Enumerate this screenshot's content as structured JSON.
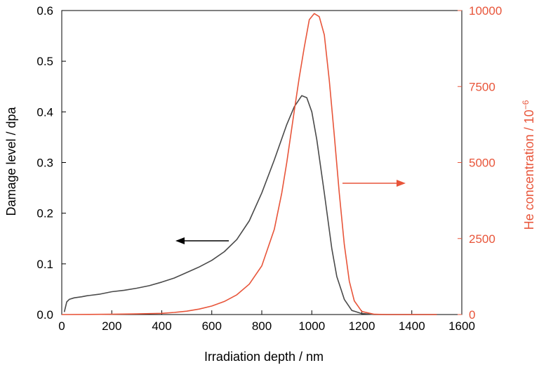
{
  "chart_data": {
    "type": "line",
    "title": "",
    "xlabel": "Irradiation depth / nm",
    "ylabel_left": "Damage level / dpa",
    "ylabel_right": "He concentration / 10",
    "ylabel_right_superscript": "−6",
    "xlim": [
      0,
      1600
    ],
    "ylim_left": [
      0,
      0.6
    ],
    "ylim_right": [
      0,
      10000
    ],
    "x_ticks": [
      "0",
      "200",
      "400",
      "600",
      "800",
      "1000",
      "1200",
      "1400",
      "1600"
    ],
    "y_left_ticks": [
      "0.0",
      "0.1",
      "0.2",
      "0.3",
      "0.4",
      "0.5",
      "0.6"
    ],
    "y_right_ticks": [
      "0",
      "2500",
      "5000",
      "7500",
      "10000"
    ],
    "grid": false,
    "colors": {
      "damage": "#4a4a4a",
      "helium": "#e8553a",
      "axis": "#000000"
    },
    "series": [
      {
        "axis": "left",
        "x": [
          10,
          20,
          30,
          50,
          80,
          100,
          150,
          200,
          250,
          300,
          350,
          400,
          450,
          500,
          550,
          600,
          650,
          700,
          750,
          800,
          850,
          900,
          930,
          960,
          980,
          1000,
          1020,
          1050,
          1080,
          1100,
          1130,
          1160,
          1200,
          1250,
          1300,
          1400,
          1500
        ],
        "values": [
          0.005,
          0.025,
          0.03,
          0.033,
          0.035,
          0.037,
          0.04,
          0.045,
          0.048,
          0.052,
          0.057,
          0.064,
          0.072,
          0.083,
          0.094,
          0.107,
          0.124,
          0.148,
          0.185,
          0.24,
          0.305,
          0.375,
          0.41,
          0.432,
          0.428,
          0.4,
          0.345,
          0.24,
          0.13,
          0.075,
          0.03,
          0.008,
          0.002,
          0.0,
          0.0,
          0.0,
          0.0
        ]
      },
      {
        "axis": "right",
        "x": [
          0,
          200,
          300,
          400,
          450,
          500,
          550,
          600,
          650,
          700,
          750,
          800,
          850,
          880,
          900,
          930,
          950,
          970,
          990,
          1010,
          1030,
          1050,
          1070,
          1090,
          1110,
          1130,
          1150,
          1170,
          1200,
          1250,
          1300,
          1400,
          1500
        ],
        "values": [
          0,
          10,
          20,
          40,
          70,
          110,
          180,
          280,
          430,
          650,
          1000,
          1600,
          2800,
          4000,
          5000,
          6700,
          7800,
          8800,
          9700,
          9900,
          9800,
          9200,
          7700,
          5900,
          4000,
          2300,
          1100,
          450,
          100,
          10,
          0,
          0,
          0
        ]
      }
    ],
    "annotations": [
      {
        "type": "arrow",
        "direction": "left",
        "points_to": "left-axis",
        "color": "#000000"
      },
      {
        "type": "arrow",
        "direction": "right",
        "points_to": "right-axis",
        "color": "#e8553a"
      }
    ]
  }
}
